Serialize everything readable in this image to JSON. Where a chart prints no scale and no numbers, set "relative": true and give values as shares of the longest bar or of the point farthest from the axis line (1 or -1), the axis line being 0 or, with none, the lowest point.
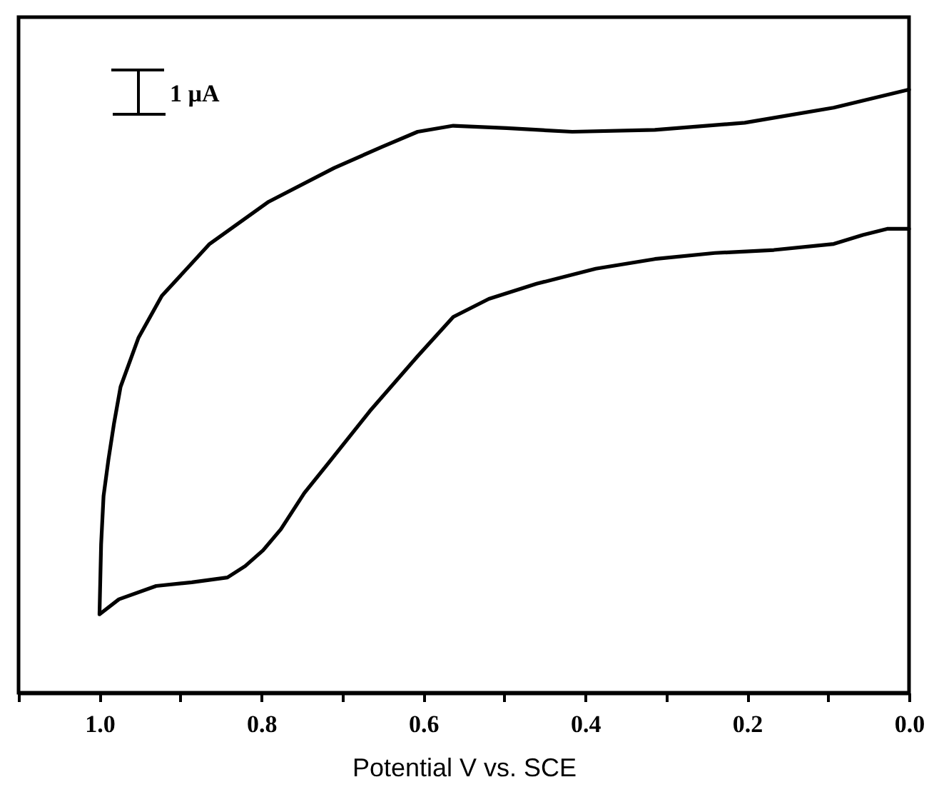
{
  "chart_data": {
    "type": "line",
    "relative": true,
    "xlabel": "Potential V vs. SCE",
    "annotations": [
      "1 µA"
    ],
    "xlim": [
      1.1,
      0.0
    ],
    "xticks": [
      {
        "value": 1.1,
        "label": null
      },
      {
        "value": 1.0,
        "label": "1.0"
      },
      {
        "value": 0.9,
        "label": null
      },
      {
        "value": 0.8,
        "label": "0.8"
      },
      {
        "value": 0.7,
        "label": null
      },
      {
        "value": 0.6,
        "label": "0.6"
      },
      {
        "value": 0.5,
        "label": null
      },
      {
        "value": 0.4,
        "label": "0.4"
      },
      {
        "value": 0.3,
        "label": null
      },
      {
        "value": 0.2,
        "label": "0.2"
      },
      {
        "value": 0.1,
        "label": null
      },
      {
        "value": 0.0,
        "label": "0.0"
      }
    ],
    "x": [
      0.0,
      0.093,
      0.203,
      0.314,
      0.416,
      0.497,
      0.563,
      0.607,
      0.651,
      0.71,
      0.791,
      0.864,
      0.923,
      0.952,
      0.974,
      0.982,
      0.989,
      0.995,
      0.998,
      1.0,
      0.976,
      0.93,
      0.886,
      0.842,
      0.82,
      0.798,
      0.776,
      0.747,
      0.717,
      0.666,
      0.607,
      0.563,
      0.519,
      0.46,
      0.387,
      0.314,
      0.24,
      0.167,
      0.093,
      0.057,
      0.027,
      0.0
    ],
    "series": [
      {
        "color": "#000000",
        "values": [
          1.0,
          0.97,
          0.945,
          0.933,
          0.93,
          0.936,
          0.94,
          0.93,
          0.905,
          0.87,
          0.814,
          0.744,
          0.658,
          0.588,
          0.507,
          0.447,
          0.386,
          0.326,
          0.246,
          0.13,
          0.155,
          0.177,
          0.183,
          0.191,
          0.21,
          0.236,
          0.271,
          0.331,
          0.381,
          0.467,
          0.558,
          0.623,
          0.653,
          0.678,
          0.703,
          0.719,
          0.729,
          0.734,
          0.744,
          0.759,
          0.769,
          0.769
        ]
      }
    ]
  }
}
